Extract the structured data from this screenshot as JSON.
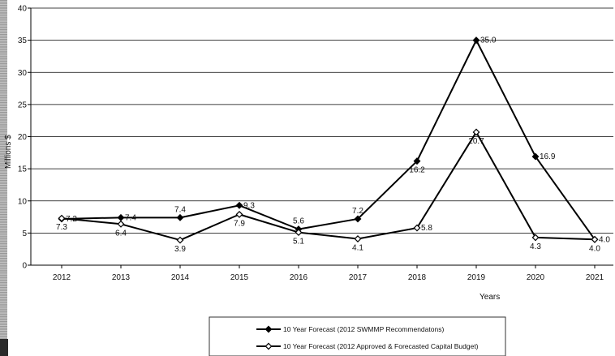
{
  "chart_data": {
    "type": "line",
    "xlabel": "Years",
    "ylabel": "Millions $",
    "ylim": [
      0,
      40
    ],
    "yticks": [
      "0",
      "5",
      "10",
      "15",
      "20",
      "25",
      "30",
      "35",
      "40"
    ],
    "categories": [
      "2012",
      "2013",
      "2014",
      "2015",
      "2016",
      "2017",
      "2018",
      "2019",
      "2020",
      "2021"
    ],
    "grid": "horizontal",
    "legend_position": "bottom-center",
    "series": [
      {
        "name": "10 Year Forecast (2012 SWMMP Recommendatons)",
        "marker": "filled-diamond",
        "values": [
          7.2,
          7.4,
          7.4,
          9.3,
          5.6,
          7.2,
          16.2,
          35.0,
          16.9,
          4.0
        ],
        "labels": [
          "7.2",
          "7.4",
          "7.4",
          "9.3",
          "5.6",
          "7.2",
          "16.2",
          "35.0",
          "16.9",
          "4.0"
        ],
        "label_positions": [
          "right",
          "right",
          "above",
          "right",
          "above",
          "above",
          "below",
          "right",
          "right",
          "right"
        ]
      },
      {
        "name": "10 Year Forecast (2012 Approved & Forecasted Capital Budget)",
        "marker": "open-diamond",
        "values": [
          7.3,
          6.4,
          3.9,
          7.9,
          5.1,
          4.1,
          5.8,
          20.7,
          4.3,
          4.0
        ],
        "labels": [
          "7.3",
          "6.4",
          "3.9",
          "7.9",
          "5.1",
          "4.1",
          "5.8",
          "20.7",
          "4.3",
          "4.0"
        ],
        "label_positions": [
          "below",
          "below",
          "below",
          "below",
          "below",
          "below",
          "right",
          "below",
          "below",
          "below"
        ]
      }
    ]
  }
}
